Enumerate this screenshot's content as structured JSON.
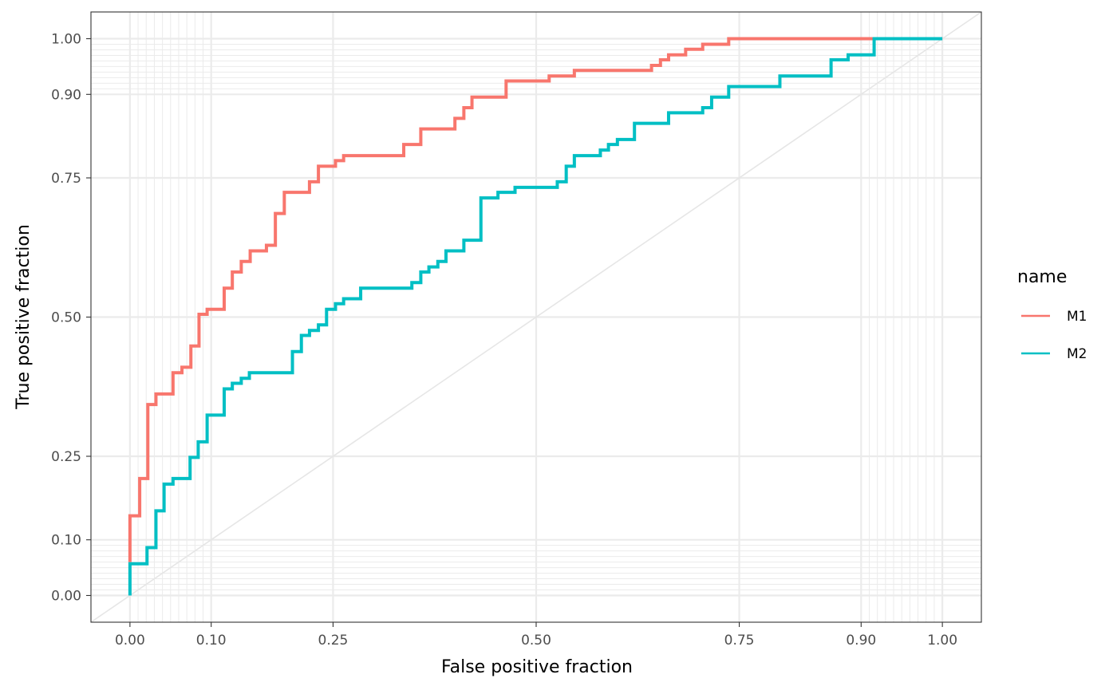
{
  "chart_data": {
    "type": "line",
    "xlabel": "False positive fraction",
    "ylabel": "True positive fraction",
    "xlim": [
      -0.048,
      1.048
    ],
    "ylim": [
      -0.048,
      1.048
    ],
    "x_ticks": [
      0.0,
      0.1,
      0.25,
      0.5,
      0.75,
      0.9,
      1.0
    ],
    "x_tick_labels": [
      "0.00",
      "0.10",
      "0.25",
      "0.50",
      "0.75",
      "0.90",
      "1.00"
    ],
    "y_ticks": [
      0.0,
      0.1,
      0.25,
      0.5,
      0.75,
      0.9,
      1.0
    ],
    "y_tick_labels": [
      "0.00",
      "0.10",
      "0.25",
      "0.50",
      "0.75",
      "0.90",
      "1.00"
    ],
    "minor_grid": [
      0.01,
      0.02,
      0.03,
      0.04,
      0.05,
      0.06,
      0.07,
      0.08,
      0.09,
      0.91,
      0.92,
      0.93,
      0.94,
      0.95,
      0.96,
      0.97,
      0.98,
      0.99
    ],
    "grid": true,
    "diagonal_reference": true,
    "step": true,
    "legend": {
      "title": "name",
      "position": "right"
    },
    "series": [
      {
        "name": "M1",
        "color": "#F8766D",
        "points": [
          [
            0.0,
            0.06
          ],
          [
            0.0,
            0.143
          ],
          [
            0.012,
            0.143
          ],
          [
            0.012,
            0.21
          ],
          [
            0.022,
            0.21
          ],
          [
            0.022,
            0.343
          ],
          [
            0.032,
            0.343
          ],
          [
            0.032,
            0.362
          ],
          [
            0.053,
            0.362
          ],
          [
            0.053,
            0.4
          ],
          [
            0.064,
            0.4
          ],
          [
            0.064,
            0.41
          ],
          [
            0.075,
            0.41
          ],
          [
            0.075,
            0.448
          ],
          [
            0.085,
            0.448
          ],
          [
            0.085,
            0.505
          ],
          [
            0.095,
            0.505
          ],
          [
            0.095,
            0.514
          ],
          [
            0.116,
            0.514
          ],
          [
            0.116,
            0.552
          ],
          [
            0.126,
            0.552
          ],
          [
            0.126,
            0.581
          ],
          [
            0.137,
            0.581
          ],
          [
            0.137,
            0.6
          ],
          [
            0.148,
            0.6
          ],
          [
            0.148,
            0.619
          ],
          [
            0.168,
            0.619
          ],
          [
            0.168,
            0.629
          ],
          [
            0.179,
            0.629
          ],
          [
            0.179,
            0.686
          ],
          [
            0.19,
            0.686
          ],
          [
            0.19,
            0.724
          ],
          [
            0.221,
            0.724
          ],
          [
            0.221,
            0.743
          ],
          [
            0.232,
            0.743
          ],
          [
            0.232,
            0.771
          ],
          [
            0.253,
            0.771
          ],
          [
            0.253,
            0.781
          ],
          [
            0.263,
            0.781
          ],
          [
            0.263,
            0.79
          ],
          [
            0.337,
            0.79
          ],
          [
            0.337,
            0.81
          ],
          [
            0.358,
            0.81
          ],
          [
            0.358,
            0.838
          ],
          [
            0.4,
            0.838
          ],
          [
            0.4,
            0.857
          ],
          [
            0.411,
            0.857
          ],
          [
            0.411,
            0.876
          ],
          [
            0.421,
            0.876
          ],
          [
            0.421,
            0.895
          ],
          [
            0.463,
            0.895
          ],
          [
            0.463,
            0.924
          ],
          [
            0.516,
            0.924
          ],
          [
            0.516,
            0.933
          ],
          [
            0.547,
            0.933
          ],
          [
            0.547,
            0.943
          ],
          [
            0.642,
            0.943
          ],
          [
            0.642,
            0.952
          ],
          [
            0.653,
            0.952
          ],
          [
            0.653,
            0.962
          ],
          [
            0.663,
            0.962
          ],
          [
            0.663,
            0.971
          ],
          [
            0.684,
            0.971
          ],
          [
            0.684,
            0.981
          ],
          [
            0.705,
            0.981
          ],
          [
            0.705,
            0.99
          ],
          [
            0.737,
            0.99
          ],
          [
            0.737,
            1.0
          ],
          [
            1.0,
            1.0
          ]
        ]
      },
      {
        "name": "M2",
        "color": "#00BFC4",
        "points": [
          [
            0.0,
            0.0
          ],
          [
            0.0,
            0.057
          ],
          [
            0.021,
            0.057
          ],
          [
            0.021,
            0.086
          ],
          [
            0.032,
            0.086
          ],
          [
            0.032,
            0.152
          ],
          [
            0.042,
            0.152
          ],
          [
            0.042,
            0.2
          ],
          [
            0.053,
            0.2
          ],
          [
            0.053,
            0.21
          ],
          [
            0.074,
            0.21
          ],
          [
            0.074,
            0.248
          ],
          [
            0.084,
            0.248
          ],
          [
            0.084,
            0.276
          ],
          [
            0.095,
            0.276
          ],
          [
            0.095,
            0.324
          ],
          [
            0.116,
            0.324
          ],
          [
            0.116,
            0.371
          ],
          [
            0.126,
            0.371
          ],
          [
            0.126,
            0.381
          ],
          [
            0.137,
            0.381
          ],
          [
            0.137,
            0.39
          ],
          [
            0.147,
            0.39
          ],
          [
            0.147,
            0.4
          ],
          [
            0.2,
            0.4
          ],
          [
            0.2,
            0.438
          ],
          [
            0.211,
            0.438
          ],
          [
            0.211,
            0.467
          ],
          [
            0.221,
            0.467
          ],
          [
            0.221,
            0.476
          ],
          [
            0.232,
            0.476
          ],
          [
            0.232,
            0.486
          ],
          [
            0.242,
            0.486
          ],
          [
            0.242,
            0.514
          ],
          [
            0.253,
            0.514
          ],
          [
            0.253,
            0.524
          ],
          [
            0.263,
            0.524
          ],
          [
            0.263,
            0.533
          ],
          [
            0.284,
            0.533
          ],
          [
            0.284,
            0.552
          ],
          [
            0.347,
            0.552
          ],
          [
            0.347,
            0.562
          ],
          [
            0.358,
            0.562
          ],
          [
            0.358,
            0.581
          ],
          [
            0.368,
            0.581
          ],
          [
            0.368,
            0.59
          ],
          [
            0.379,
            0.59
          ],
          [
            0.379,
            0.6
          ],
          [
            0.389,
            0.6
          ],
          [
            0.389,
            0.619
          ],
          [
            0.411,
            0.619
          ],
          [
            0.411,
            0.638
          ],
          [
            0.432,
            0.638
          ],
          [
            0.432,
            0.714
          ],
          [
            0.453,
            0.714
          ],
          [
            0.453,
            0.724
          ],
          [
            0.474,
            0.724
          ],
          [
            0.474,
            0.733
          ],
          [
            0.526,
            0.733
          ],
          [
            0.526,
            0.743
          ],
          [
            0.537,
            0.743
          ],
          [
            0.537,
            0.771
          ],
          [
            0.547,
            0.771
          ],
          [
            0.547,
            0.79
          ],
          [
            0.579,
            0.79
          ],
          [
            0.579,
            0.8
          ],
          [
            0.589,
            0.8
          ],
          [
            0.589,
            0.81
          ],
          [
            0.6,
            0.81
          ],
          [
            0.6,
            0.819
          ],
          [
            0.621,
            0.819
          ],
          [
            0.621,
            0.848
          ],
          [
            0.663,
            0.848
          ],
          [
            0.663,
            0.867
          ],
          [
            0.705,
            0.867
          ],
          [
            0.705,
            0.876
          ],
          [
            0.716,
            0.876
          ],
          [
            0.716,
            0.895
          ],
          [
            0.737,
            0.895
          ],
          [
            0.737,
            0.914
          ],
          [
            0.8,
            0.914
          ],
          [
            0.8,
            0.933
          ],
          [
            0.863,
            0.933
          ],
          [
            0.863,
            0.962
          ],
          [
            0.884,
            0.962
          ],
          [
            0.884,
            0.971
          ],
          [
            0.916,
            0.971
          ],
          [
            0.916,
            1.0
          ],
          [
            1.0,
            1.0
          ]
        ]
      }
    ]
  }
}
